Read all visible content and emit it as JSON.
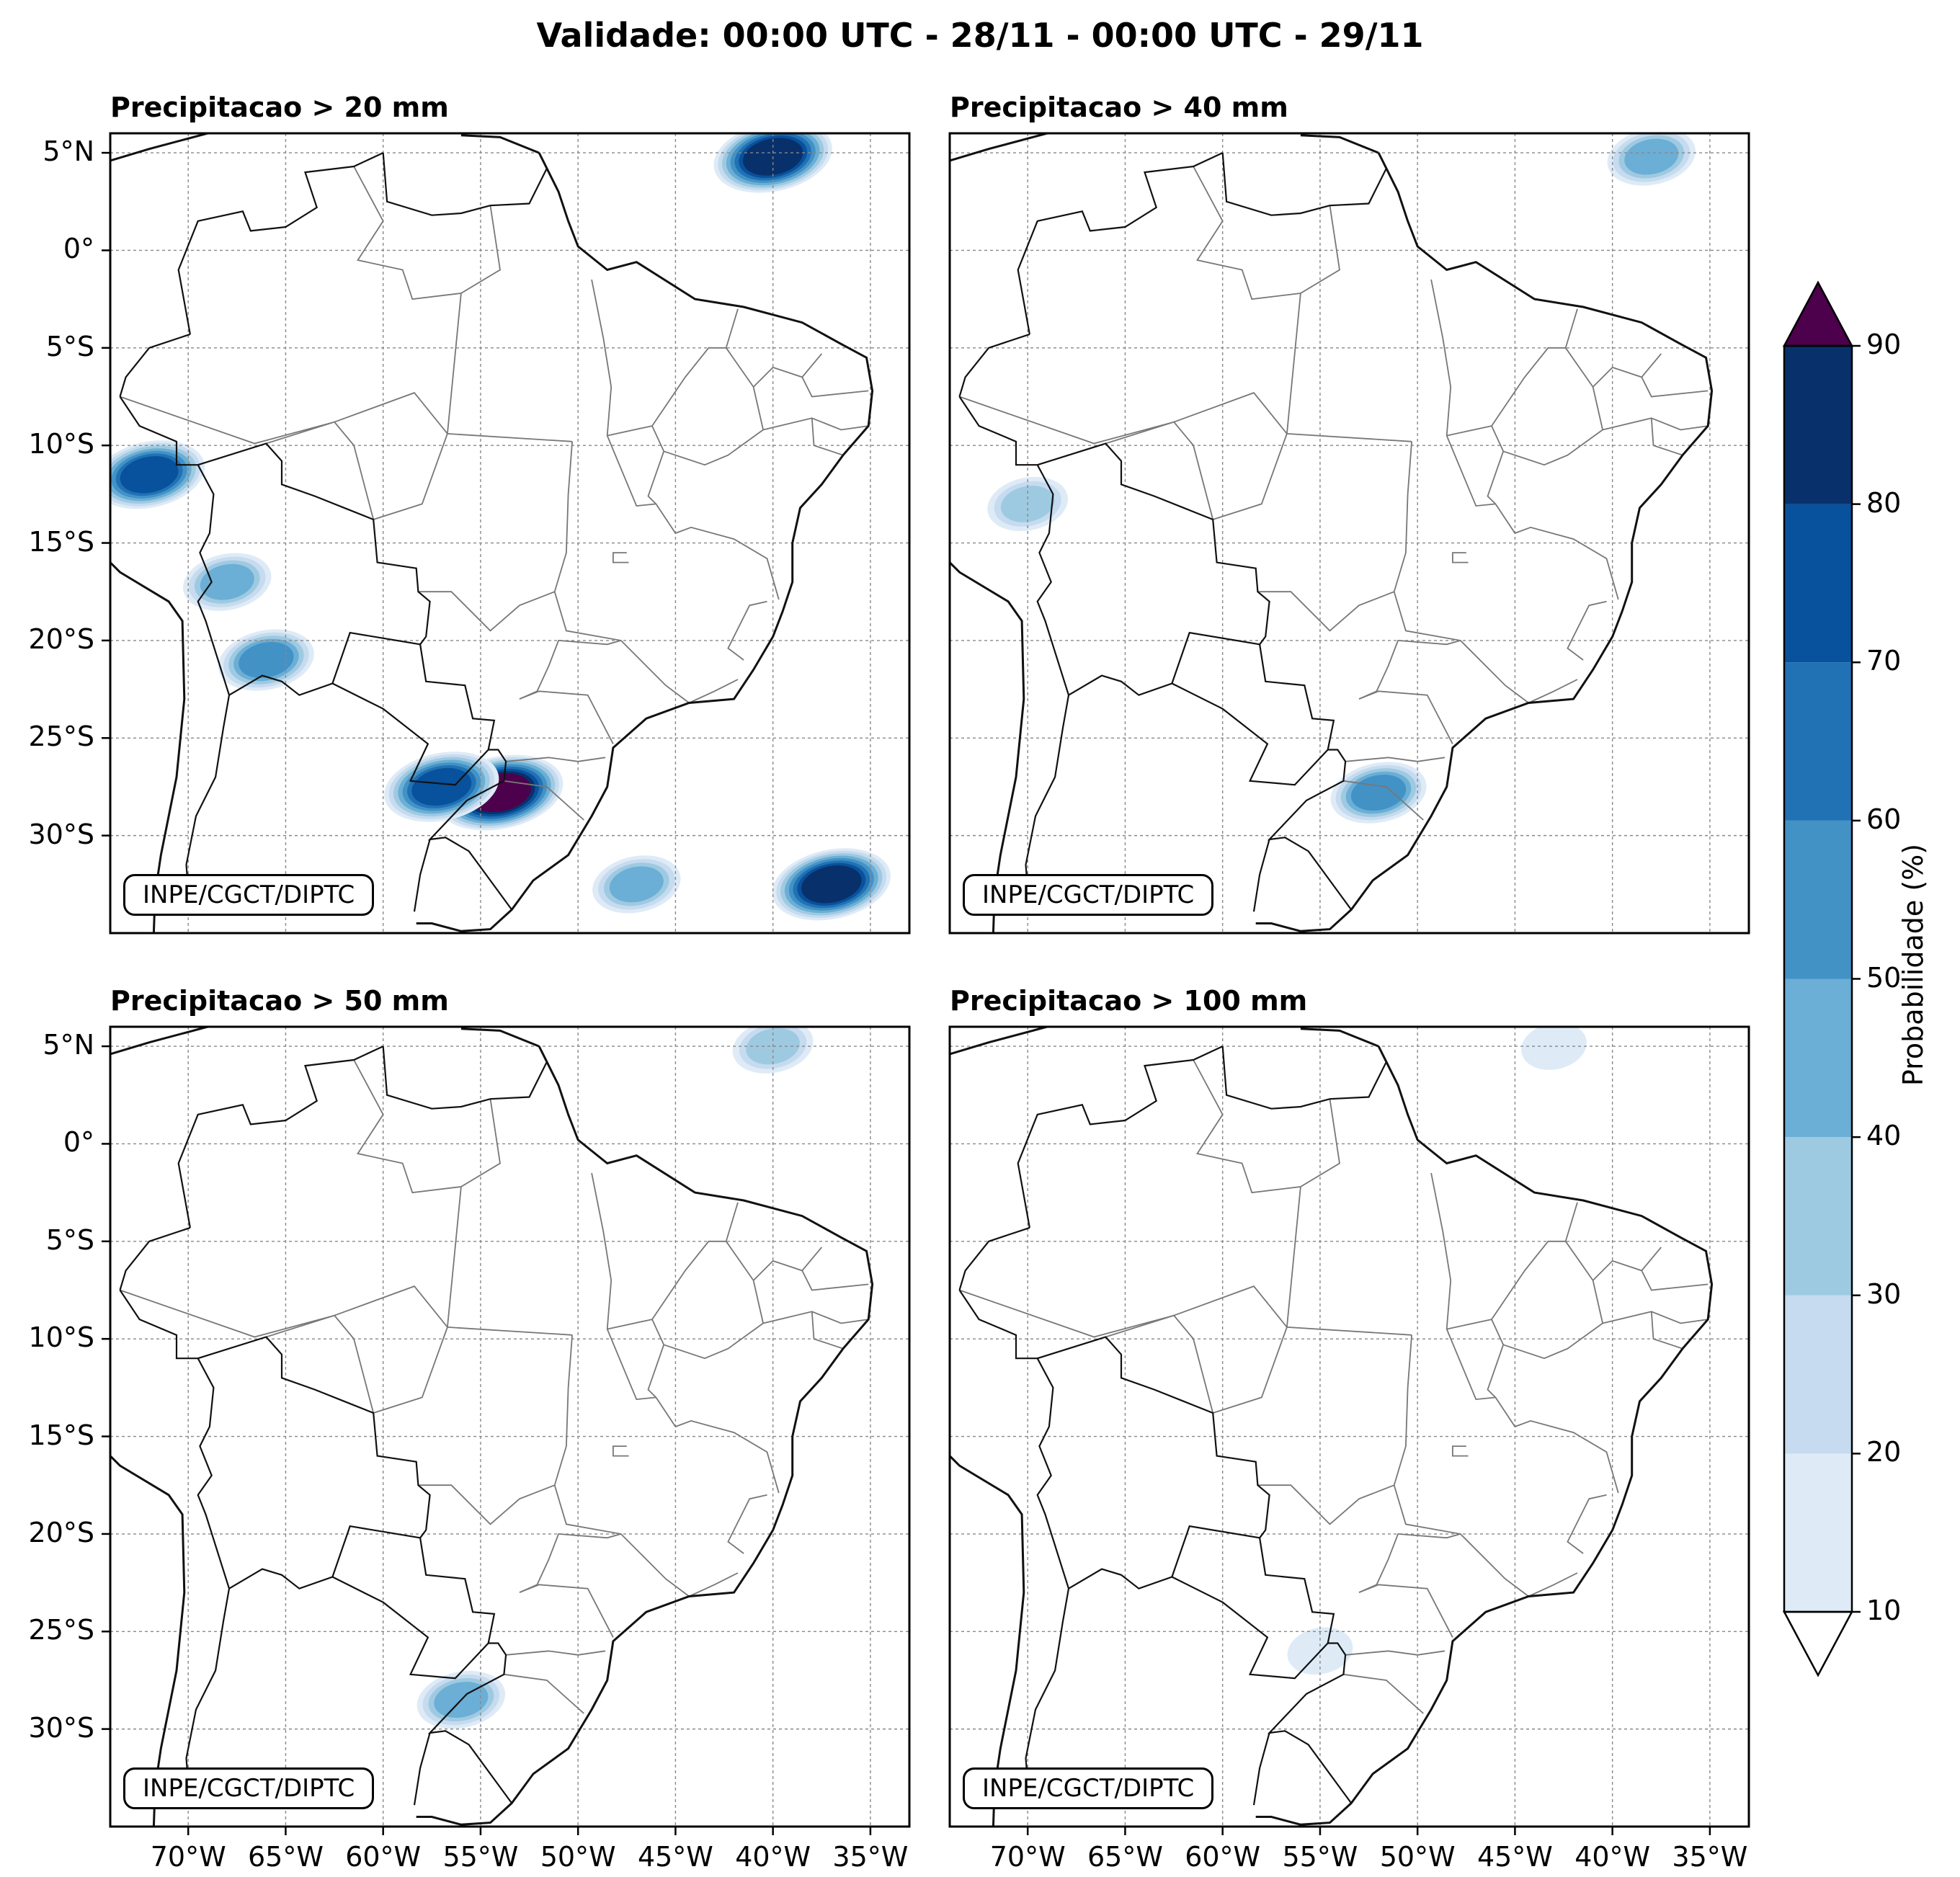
{
  "title": "Validade: 00:00 UTC - 28/11 - 00:00 UTC - 29/11",
  "watermark": "INPE/CGCT/DIPTC",
  "panels": [
    {
      "title": "Precipitacao > 20 mm"
    },
    {
      "title": "Precipitacao > 40 mm"
    },
    {
      "title": "Precipitacao > 50 mm"
    },
    {
      "title": "Precipitacao > 100 mm"
    }
  ],
  "lat_ticks": [
    "5°N",
    "0°",
    "5°S",
    "10°S",
    "15°S",
    "20°S",
    "25°S",
    "30°S"
  ],
  "lon_ticks": [
    "70°W",
    "65°W",
    "60°W",
    "55°W",
    "50°W",
    "45°W",
    "40°W",
    "35°W"
  ],
  "colorbar": {
    "label": "Probabilidade (%)",
    "ticks": [
      "10",
      "20",
      "30",
      "40",
      "50",
      "60",
      "70",
      "80",
      "90"
    ],
    "colors": [
      "#deebf7",
      "#c6dbef",
      "#9ecae1",
      "#6baed6",
      "#4292c6",
      "#2171b5",
      "#08519c",
      "#08306b"
    ],
    "over_color": "#4d004b",
    "under_color": "#ffffff"
  },
  "chart_data": {
    "type": "heatmap",
    "extent": {
      "lon": [
        -74,
        -33
      ],
      "lat": [
        -35,
        6
      ]
    },
    "panels": [
      {
        "threshold_mm": 20,
        "areas": [
          {
            "lon": -54,
            "lat": -27.8,
            "prob": 90
          },
          {
            "lon": -57,
            "lat": -27.5,
            "prob": 75
          },
          {
            "lon": -40,
            "lat": 4.8,
            "prob": 80
          },
          {
            "lon": -37,
            "lat": -32.5,
            "prob": 80
          },
          {
            "lon": -72,
            "lat": -11.5,
            "prob": 70
          },
          {
            "lon": -68,
            "lat": -17,
            "prob": 40
          },
          {
            "lon": -66,
            "lat": -21,
            "prob": 50
          },
          {
            "lon": -47,
            "lat": -32.5,
            "prob": 40
          }
        ]
      },
      {
        "threshold_mm": 40,
        "areas": [
          {
            "lon": -52,
            "lat": -27.8,
            "prob": 50
          },
          {
            "lon": -38,
            "lat": 4.8,
            "prob": 40
          },
          {
            "lon": -70,
            "lat": -13,
            "prob": 30
          }
        ]
      },
      {
        "threshold_mm": 50,
        "areas": [
          {
            "lon": -56,
            "lat": -28.5,
            "prob": 40
          },
          {
            "lon": -40,
            "lat": 5,
            "prob": 30
          }
        ]
      },
      {
        "threshold_mm": 100,
        "areas": [
          {
            "lon": -43,
            "lat": 5,
            "prob": 10
          },
          {
            "lon": -55,
            "lat": -26,
            "prob": 10
          }
        ]
      }
    ]
  }
}
